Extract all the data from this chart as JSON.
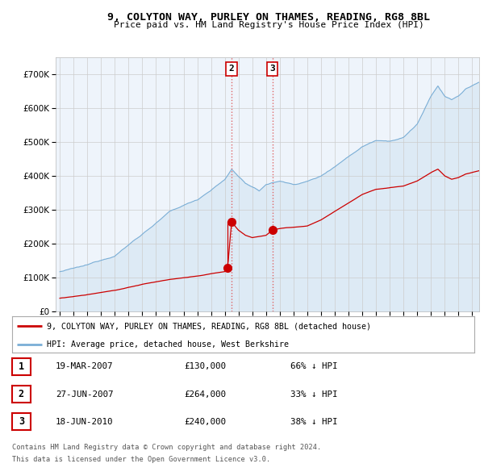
{
  "title": "9, COLYTON WAY, PURLEY ON THAMES, READING, RG8 8BL",
  "subtitle": "Price paid vs. HM Land Registry's House Price Index (HPI)",
  "legend_house": "9, COLYTON WAY, PURLEY ON THAMES, READING, RG8 8BL (detached house)",
  "legend_hpi": "HPI: Average price, detached house, West Berkshire",
  "footer1": "Contains HM Land Registry data © Crown copyright and database right 2024.",
  "footer2": "This data is licensed under the Open Government Licence v3.0.",
  "transactions": [
    {
      "num": 1,
      "date": "19-MAR-2007",
      "price": "£130,000",
      "pct": "66% ↓ HPI"
    },
    {
      "num": 2,
      "date": "27-JUN-2007",
      "price": "£264,000",
      "pct": "33% ↓ HPI"
    },
    {
      "num": 3,
      "date": "18-JUN-2010",
      "price": "£240,000",
      "pct": "38% ↓ HPI"
    }
  ],
  "t1_x": 2007.21,
  "t2_x": 2007.49,
  "t3_x": 2010.46,
  "t1_price": 130000,
  "t2_price": 264000,
  "t3_price": 240000,
  "background_color": "#ffffff",
  "plot_bg_color": "#eef4fb",
  "grid_color": "#cccccc",
  "house_line_color": "#cc0000",
  "hpi_line_color": "#7aaed6",
  "hpi_fill_color": "#ddeaf5",
  "ylim": [
    0,
    750000
  ],
  "xlim_start": 1994.7,
  "xlim_end": 2025.5,
  "yticks": [
    0,
    100000,
    200000,
    300000,
    400000,
    500000,
    600000,
    700000
  ],
  "xticks": [
    1995,
    1996,
    1997,
    1998,
    1999,
    2000,
    2001,
    2002,
    2003,
    2004,
    2005,
    2006,
    2007,
    2008,
    2009,
    2010,
    2011,
    2012,
    2013,
    2014,
    2015,
    2016,
    2017,
    2018,
    2019,
    2020,
    2021,
    2022,
    2023,
    2024,
    2025
  ]
}
